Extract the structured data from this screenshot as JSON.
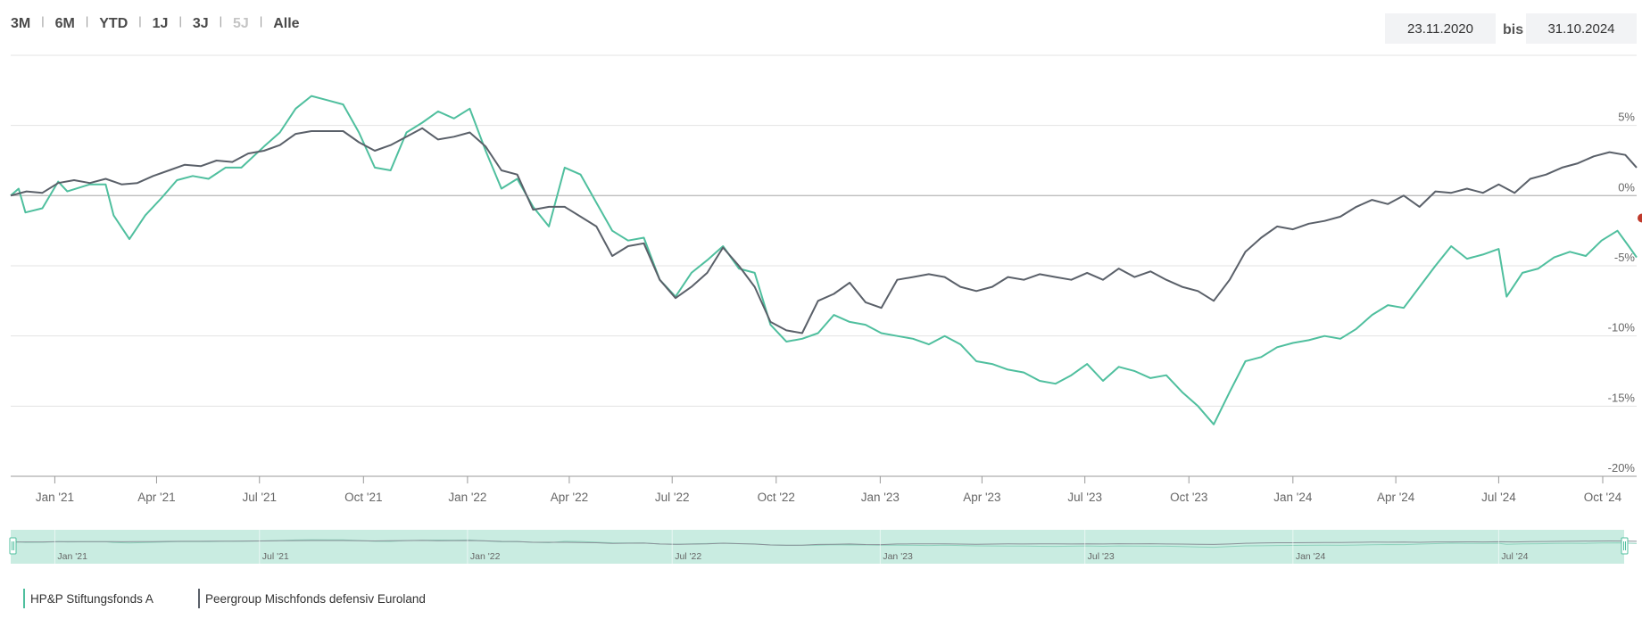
{
  "range_buttons": [
    {
      "label": "3M",
      "enabled": true
    },
    {
      "label": "6M",
      "enabled": true
    },
    {
      "label": "YTD",
      "enabled": true
    },
    {
      "label": "1J",
      "enabled": true
    },
    {
      "label": "3J",
      "enabled": true
    },
    {
      "label": "5J",
      "enabled": false
    },
    {
      "label": "Alle",
      "enabled": true
    }
  ],
  "range_separator": "|",
  "date_range": {
    "from": "23.11.2020",
    "separator": "bis",
    "to": "31.10.2024"
  },
  "colors": {
    "series_fund": "#4fbf9e",
    "series_peer": "#5a6069",
    "navigator_fill": "#c9ece1",
    "grid": "#e3e3e3",
    "zero_line": "#bdbdbd",
    "axis_text": "#666666",
    "end_marker": "#c0392b"
  },
  "chart_data": {
    "type": "line",
    "x_start": "2020-11-23",
    "x_end": "2024-10-31",
    "ylim": [
      -20,
      10
    ],
    "y_ticks": [
      5,
      0,
      -5,
      -10,
      -15,
      -20
    ],
    "y_tick_labels": [
      "5%",
      "0%",
      "-5%",
      "-10%",
      "-15%",
      "-20%"
    ],
    "x_ticks": [
      {
        "date": "2021-01-01",
        "label": "Jan '21"
      },
      {
        "date": "2021-04-01",
        "label": "Apr '21"
      },
      {
        "date": "2021-07-01",
        "label": "Jul '21"
      },
      {
        "date": "2021-10-01",
        "label": "Oct '21"
      },
      {
        "date": "2022-01-01",
        "label": "Jan '22"
      },
      {
        "date": "2022-04-01",
        "label": "Apr '22"
      },
      {
        "date": "2022-07-01",
        "label": "Jul '22"
      },
      {
        "date": "2022-10-01",
        "label": "Oct '22"
      },
      {
        "date": "2023-01-01",
        "label": "Jan '23"
      },
      {
        "date": "2023-04-01",
        "label": "Apr '23"
      },
      {
        "date": "2023-07-01",
        "label": "Jul '23"
      },
      {
        "date": "2023-10-01",
        "label": "Oct '23"
      },
      {
        "date": "2024-01-01",
        "label": "Jan '24"
      },
      {
        "date": "2024-04-01",
        "label": "Apr '24"
      },
      {
        "date": "2024-07-01",
        "label": "Jul '24"
      },
      {
        "date": "2024-10-01",
        "label": "Oct '24"
      }
    ],
    "navigator_ticks": [
      {
        "date": "2021-01-01",
        "label": "Jan '21"
      },
      {
        "date": "2021-07-01",
        "label": "Jul '21"
      },
      {
        "date": "2022-01-01",
        "label": "Jan '22"
      },
      {
        "date": "2022-07-01",
        "label": "Jul '22"
      },
      {
        "date": "2023-01-01",
        "label": "Jan '23"
      },
      {
        "date": "2023-07-01",
        "label": "Jul '23"
      },
      {
        "date": "2024-01-01",
        "label": "Jan '24"
      },
      {
        "date": "2024-07-01",
        "label": "Jul '24"
      }
    ],
    "series": [
      {
        "name": "HP&P Stiftungsfonds A",
        "color": "#4fbf9e",
        "points": [
          [
            "2020-11-23",
            0.0
          ],
          [
            "2020-11-30",
            0.5
          ],
          [
            "2020-12-06",
            -1.2
          ],
          [
            "2020-12-21",
            -0.9
          ],
          [
            "2021-01-04",
            1.0
          ],
          [
            "2021-01-12",
            0.3
          ],
          [
            "2021-02-01",
            0.8
          ],
          [
            "2021-02-15",
            0.8
          ],
          [
            "2021-02-22",
            -1.4
          ],
          [
            "2021-03-08",
            -3.1
          ],
          [
            "2021-03-22",
            -1.4
          ],
          [
            "2021-04-05",
            -0.2
          ],
          [
            "2021-04-19",
            1.1
          ],
          [
            "2021-05-03",
            1.4
          ],
          [
            "2021-05-17",
            1.2
          ],
          [
            "2021-06-01",
            2.0
          ],
          [
            "2021-06-15",
            2.0
          ],
          [
            "2021-07-05",
            3.5
          ],
          [
            "2021-07-19",
            4.5
          ],
          [
            "2021-08-02",
            6.2
          ],
          [
            "2021-08-16",
            7.1
          ],
          [
            "2021-08-30",
            6.8
          ],
          [
            "2021-09-13",
            6.5
          ],
          [
            "2021-09-27",
            4.5
          ],
          [
            "2021-10-11",
            2.0
          ],
          [
            "2021-10-25",
            1.8
          ],
          [
            "2021-11-08",
            4.5
          ],
          [
            "2021-11-22",
            5.2
          ],
          [
            "2021-12-06",
            6.0
          ],
          [
            "2021-12-20",
            5.5
          ],
          [
            "2022-01-03",
            6.2
          ],
          [
            "2022-01-17",
            3.2
          ],
          [
            "2022-01-31",
            0.5
          ],
          [
            "2022-02-14",
            1.2
          ],
          [
            "2022-02-28",
            -0.8
          ],
          [
            "2022-03-14",
            -2.2
          ],
          [
            "2022-03-28",
            2.0
          ],
          [
            "2022-04-11",
            1.5
          ],
          [
            "2022-04-25",
            -0.5
          ],
          [
            "2022-05-09",
            -2.5
          ],
          [
            "2022-05-23",
            -3.2
          ],
          [
            "2022-06-06",
            -3.0
          ],
          [
            "2022-06-20",
            -6.0
          ],
          [
            "2022-07-04",
            -7.2
          ],
          [
            "2022-07-18",
            -5.5
          ],
          [
            "2022-08-01",
            -4.6
          ],
          [
            "2022-08-15",
            -3.6
          ],
          [
            "2022-08-29",
            -5.2
          ],
          [
            "2022-09-12",
            -5.5
          ],
          [
            "2022-09-26",
            -9.2
          ],
          [
            "2022-10-10",
            -10.4
          ],
          [
            "2022-10-24",
            -10.2
          ],
          [
            "2022-11-07",
            -9.8
          ],
          [
            "2022-11-21",
            -8.5
          ],
          [
            "2022-12-05",
            -9.0
          ],
          [
            "2022-12-19",
            -9.2
          ],
          [
            "2023-01-02",
            -9.8
          ],
          [
            "2023-01-16",
            -10.0
          ],
          [
            "2023-01-30",
            -10.2
          ],
          [
            "2023-02-13",
            -10.6
          ],
          [
            "2023-02-27",
            -10.0
          ],
          [
            "2023-03-13",
            -10.6
          ],
          [
            "2023-03-27",
            -11.8
          ],
          [
            "2023-04-10",
            -12.0
          ],
          [
            "2023-04-24",
            -12.4
          ],
          [
            "2023-05-08",
            -12.6
          ],
          [
            "2023-05-22",
            -13.2
          ],
          [
            "2023-06-05",
            -13.4
          ],
          [
            "2023-06-19",
            -12.8
          ],
          [
            "2023-07-03",
            -12.0
          ],
          [
            "2023-07-17",
            -13.2
          ],
          [
            "2023-07-31",
            -12.2
          ],
          [
            "2023-08-14",
            -12.5
          ],
          [
            "2023-08-28",
            -13.0
          ],
          [
            "2023-09-11",
            -12.8
          ],
          [
            "2023-09-25",
            -14.0
          ],
          [
            "2023-10-09",
            -15.0
          ],
          [
            "2023-10-23",
            -16.3
          ],
          [
            "2023-11-06",
            -14.0
          ],
          [
            "2023-11-20",
            -11.8
          ],
          [
            "2023-12-04",
            -11.5
          ],
          [
            "2023-12-18",
            -10.8
          ],
          [
            "2024-01-01",
            -10.5
          ],
          [
            "2024-01-15",
            -10.3
          ],
          [
            "2024-01-29",
            -10.0
          ],
          [
            "2024-02-12",
            -10.2
          ],
          [
            "2024-02-26",
            -9.5
          ],
          [
            "2024-03-11",
            -8.5
          ],
          [
            "2024-03-25",
            -7.8
          ],
          [
            "2024-04-08",
            -8.0
          ],
          [
            "2024-04-22",
            -6.5
          ],
          [
            "2024-05-06",
            -5.0
          ],
          [
            "2024-05-20",
            -3.6
          ],
          [
            "2024-06-03",
            -4.5
          ],
          [
            "2024-06-17",
            -4.2
          ],
          [
            "2024-07-01",
            -3.8
          ],
          [
            "2024-07-08",
            -7.2
          ],
          [
            "2024-07-22",
            -5.5
          ],
          [
            "2024-08-05",
            -5.2
          ],
          [
            "2024-08-19",
            -4.4
          ],
          [
            "2024-09-02",
            -4.0
          ],
          [
            "2024-09-16",
            -4.3
          ],
          [
            "2024-09-30",
            -3.2
          ],
          [
            "2024-10-14",
            -2.5
          ],
          [
            "2024-10-24",
            -3.6
          ],
          [
            "2024-10-31",
            -4.4
          ]
        ]
      },
      {
        "name": "Peergroup Mischfonds defensiv Euroland",
        "color": "#5a6069",
        "points": [
          [
            "2020-11-23",
            0.0
          ],
          [
            "2020-12-07",
            0.3
          ],
          [
            "2020-12-21",
            0.2
          ],
          [
            "2021-01-04",
            0.9
          ],
          [
            "2021-01-18",
            1.1
          ],
          [
            "2021-02-01",
            0.9
          ],
          [
            "2021-02-15",
            1.2
          ],
          [
            "2021-03-01",
            0.8
          ],
          [
            "2021-03-15",
            0.9
          ],
          [
            "2021-03-29",
            1.4
          ],
          [
            "2021-04-12",
            1.8
          ],
          [
            "2021-04-26",
            2.2
          ],
          [
            "2021-05-10",
            2.1
          ],
          [
            "2021-05-24",
            2.5
          ],
          [
            "2021-06-07",
            2.4
          ],
          [
            "2021-06-21",
            3.0
          ],
          [
            "2021-07-05",
            3.2
          ],
          [
            "2021-07-19",
            3.6
          ],
          [
            "2021-08-02",
            4.4
          ],
          [
            "2021-08-16",
            4.6
          ],
          [
            "2021-08-30",
            4.6
          ],
          [
            "2021-09-13",
            4.6
          ],
          [
            "2021-09-27",
            3.8
          ],
          [
            "2021-10-11",
            3.2
          ],
          [
            "2021-10-25",
            3.6
          ],
          [
            "2021-11-08",
            4.2
          ],
          [
            "2021-11-22",
            4.8
          ],
          [
            "2021-12-06",
            4.0
          ],
          [
            "2021-12-20",
            4.2
          ],
          [
            "2022-01-03",
            4.5
          ],
          [
            "2022-01-17",
            3.5
          ],
          [
            "2022-01-31",
            1.8
          ],
          [
            "2022-02-14",
            1.5
          ],
          [
            "2022-02-28",
            -1.0
          ],
          [
            "2022-03-14",
            -0.8
          ],
          [
            "2022-03-28",
            -0.8
          ],
          [
            "2022-04-11",
            -1.5
          ],
          [
            "2022-04-25",
            -2.2
          ],
          [
            "2022-05-09",
            -4.3
          ],
          [
            "2022-05-23",
            -3.6
          ],
          [
            "2022-06-06",
            -3.4
          ],
          [
            "2022-06-20",
            -6.0
          ],
          [
            "2022-07-04",
            -7.3
          ],
          [
            "2022-07-18",
            -6.5
          ],
          [
            "2022-08-01",
            -5.5
          ],
          [
            "2022-08-15",
            -3.7
          ],
          [
            "2022-08-29",
            -5.0
          ],
          [
            "2022-09-12",
            -6.5
          ],
          [
            "2022-09-26",
            -9.0
          ],
          [
            "2022-10-10",
            -9.6
          ],
          [
            "2022-10-24",
            -9.8
          ],
          [
            "2022-11-07",
            -7.5
          ],
          [
            "2022-11-21",
            -7.0
          ],
          [
            "2022-12-05",
            -6.2
          ],
          [
            "2022-12-19",
            -7.6
          ],
          [
            "2023-01-02",
            -8.0
          ],
          [
            "2023-01-16",
            -6.0
          ],
          [
            "2023-01-30",
            -5.8
          ],
          [
            "2023-02-13",
            -5.6
          ],
          [
            "2023-02-27",
            -5.8
          ],
          [
            "2023-03-13",
            -6.5
          ],
          [
            "2023-03-27",
            -6.8
          ],
          [
            "2023-04-10",
            -6.5
          ],
          [
            "2023-04-24",
            -5.8
          ],
          [
            "2023-05-08",
            -6.0
          ],
          [
            "2023-05-22",
            -5.6
          ],
          [
            "2023-06-05",
            -5.8
          ],
          [
            "2023-06-19",
            -6.0
          ],
          [
            "2023-07-03",
            -5.5
          ],
          [
            "2023-07-17",
            -6.0
          ],
          [
            "2023-07-31",
            -5.2
          ],
          [
            "2023-08-14",
            -5.8
          ],
          [
            "2023-08-28",
            -5.4
          ],
          [
            "2023-09-11",
            -6.0
          ],
          [
            "2023-09-25",
            -6.5
          ],
          [
            "2023-10-09",
            -6.8
          ],
          [
            "2023-10-23",
            -7.5
          ],
          [
            "2023-11-06",
            -6.0
          ],
          [
            "2023-11-20",
            -4.0
          ],
          [
            "2023-12-04",
            -3.0
          ],
          [
            "2023-12-18",
            -2.2
          ],
          [
            "2024-01-01",
            -2.4
          ],
          [
            "2024-01-15",
            -2.0
          ],
          [
            "2024-01-29",
            -1.8
          ],
          [
            "2024-02-12",
            -1.5
          ],
          [
            "2024-02-26",
            -0.8
          ],
          [
            "2024-03-11",
            -0.3
          ],
          [
            "2024-03-25",
            -0.6
          ],
          [
            "2024-04-08",
            0.0
          ],
          [
            "2024-04-22",
            -0.8
          ],
          [
            "2024-05-06",
            0.3
          ],
          [
            "2024-05-20",
            0.2
          ],
          [
            "2024-06-03",
            0.5
          ],
          [
            "2024-06-17",
            0.2
          ],
          [
            "2024-07-01",
            0.8
          ],
          [
            "2024-07-15",
            0.2
          ],
          [
            "2024-07-29",
            1.2
          ],
          [
            "2024-08-12",
            1.5
          ],
          [
            "2024-08-26",
            2.0
          ],
          [
            "2024-09-09",
            2.3
          ],
          [
            "2024-09-23",
            2.8
          ],
          [
            "2024-10-07",
            3.1
          ],
          [
            "2024-10-21",
            2.9
          ],
          [
            "2024-10-31",
            2.0
          ]
        ]
      }
    ]
  }
}
